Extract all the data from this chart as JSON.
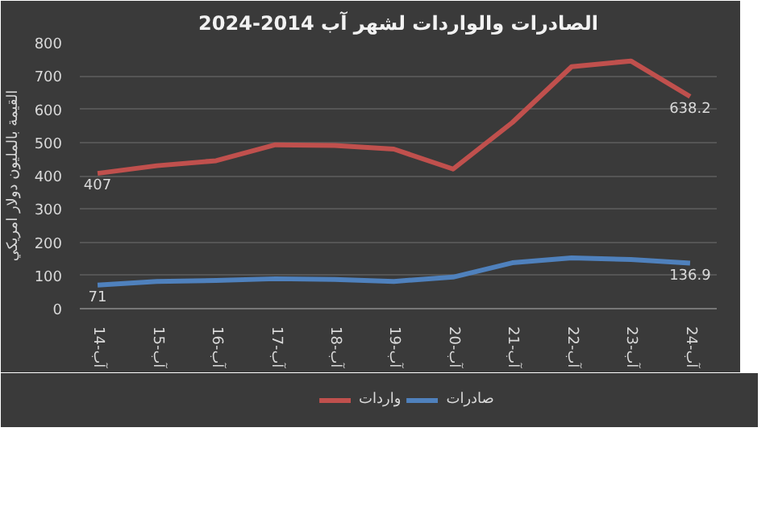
{
  "chart_data": {
    "type": "line",
    "title": "الصادرات والواردات لشهر آب 2014-2024",
    "ylabel": "القيمة بالمليون دولار امريكي",
    "categories": [
      "آب-14",
      "آب-15",
      "آب-16",
      "آب-17",
      "آب-18",
      "آب-19",
      "آب-20",
      "آب-21",
      "آب-22",
      "آب-23",
      "آب-24"
    ],
    "series": [
      {
        "name": "واردات",
        "color": "#c0504d",
        "values": [
          407,
          430,
          445,
          493,
          491,
          480,
          420,
          560,
          728,
          745,
          638.2
        ],
        "value_labels": [
          "407",
          null,
          null,
          null,
          null,
          null,
          null,
          null,
          null,
          null,
          "638.2"
        ]
      },
      {
        "name": "صادرات",
        "color": "#4f81bd",
        "values": [
          71,
          82,
          85,
          90,
          88,
          82,
          95,
          138,
          153,
          148,
          136.9
        ],
        "value_labels": [
          "71",
          null,
          null,
          null,
          null,
          null,
          null,
          null,
          null,
          null,
          "136.9"
        ]
      }
    ],
    "ylim": [
      0,
      800
    ],
    "yticks": [
      0,
      100,
      200,
      300,
      400,
      500,
      600,
      700,
      800
    ],
    "grid": "y",
    "legend": "bottom"
  }
}
